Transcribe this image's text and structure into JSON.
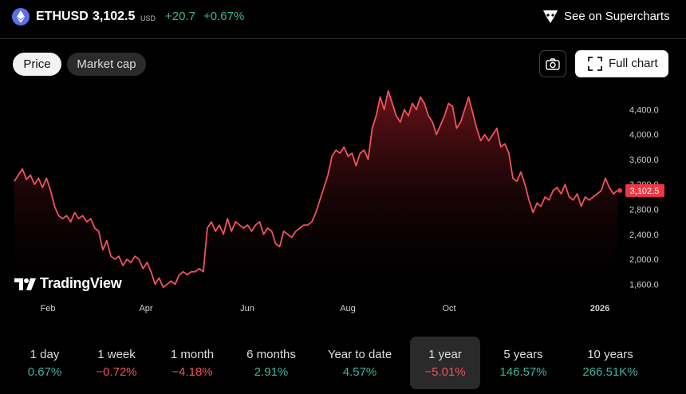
{
  "header": {
    "symbol": "ETHUSD",
    "price": "3,102.5",
    "currency": "USD",
    "change": "+20.7",
    "change_percent": "+0.67%",
    "supercharts_label": "See on Supercharts"
  },
  "tabs": [
    {
      "label": "Price",
      "active": true
    },
    {
      "label": "Market cap",
      "active": false
    }
  ],
  "actions": {
    "full_chart_label": "Full chart"
  },
  "branding": {
    "logo_text": "TradingView"
  },
  "colors": {
    "up": "#3fb59a",
    "down": "#f0535c",
    "line": "#f0535c",
    "price_tag": "#f23645"
  },
  "chart_data": {
    "type": "area",
    "x_labels": [
      "Feb",
      "Apr",
      "Jun",
      "Aug",
      "Oct",
      "2026"
    ],
    "y_ticks": [
      "4,400.0",
      "4,000.0",
      "3,600.0",
      "3,200.0",
      "2,800.0",
      "2,400.0",
      "2,000.0",
      "1,600.0"
    ],
    "ylim": [
      1400,
      4750
    ],
    "last_price_label": "3,102.5",
    "series": [
      {
        "values": [
          3250,
          3350,
          3450,
          3280,
          3350,
          3200,
          3300,
          3150,
          3300,
          3100,
          2850,
          2700,
          2650,
          2700,
          2600,
          2750,
          2650,
          2700,
          2600,
          2650,
          2500,
          2450,
          2150,
          2300,
          2050,
          2000,
          2050,
          1900,
          2000,
          1950,
          2050,
          2000,
          1850,
          1950,
          1800,
          1600,
          1700,
          1550,
          1600,
          1650,
          1600,
          1750,
          1800,
          1750,
          1800,
          1800,
          1850,
          1800,
          2500,
          2600,
          2450,
          2550,
          2400,
          2650,
          2450,
          2600,
          2550,
          2500,
          2550,
          2450,
          2550,
          2600,
          2400,
          2500,
          2450,
          2250,
          2200,
          2450,
          2400,
          2350,
          2450,
          2500,
          2550,
          2550,
          2600,
          2750,
          2950,
          3150,
          3350,
          3650,
          3750,
          3700,
          3800,
          3650,
          3700,
          3500,
          3700,
          3750,
          3600,
          4100,
          4300,
          4600,
          4400,
          4700,
          4500,
          4300,
          4200,
          4400,
          4300,
          4500,
          4400,
          4600,
          4500,
          4300,
          4200,
          4000,
          4150,
          4300,
          4500,
          4450,
          4100,
          4200,
          4400,
          4600,
          4350,
          4100,
          3900,
          4000,
          3900,
          4000,
          4100,
          3800,
          3850,
          3700,
          3300,
          3250,
          3400,
          3200,
          2950,
          2750,
          2900,
          2850,
          3000,
          2950,
          3100,
          3150,
          3050,
          3200,
          3000,
          2950,
          3050,
          2850,
          3000,
          2950,
          3000,
          3050,
          3100,
          3300,
          3150,
          3050,
          3102.5
        ]
      }
    ]
  }
}
